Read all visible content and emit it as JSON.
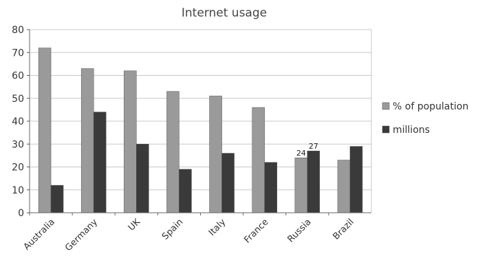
{
  "chart_data": {
    "type": "bar",
    "title": "Internet usage",
    "categories": [
      "Australia",
      "Germany",
      "UK",
      "Spain",
      "Italy",
      "France",
      "Russia",
      "Brazil"
    ],
    "series": [
      {
        "name": "% of population",
        "values": [
          72,
          63,
          62,
          53,
          51,
          46,
          24,
          23
        ],
        "color": "#9a9a9a"
      },
      {
        "name": "millions",
        "values": [
          12,
          44,
          30,
          19,
          26,
          22,
          27,
          29
        ],
        "color": "#3a3a3a"
      }
    ],
    "ylim": [
      0,
      80
    ],
    "yticks": [
      0,
      10,
      20,
      30,
      40,
      50,
      60,
      70,
      80
    ],
    "grid": true,
    "legend": "right",
    "annotations": [
      {
        "category": "Russia",
        "series": "% of population",
        "text": "24"
      },
      {
        "category": "Russia",
        "series": "millions",
        "text": "27"
      }
    ]
  }
}
